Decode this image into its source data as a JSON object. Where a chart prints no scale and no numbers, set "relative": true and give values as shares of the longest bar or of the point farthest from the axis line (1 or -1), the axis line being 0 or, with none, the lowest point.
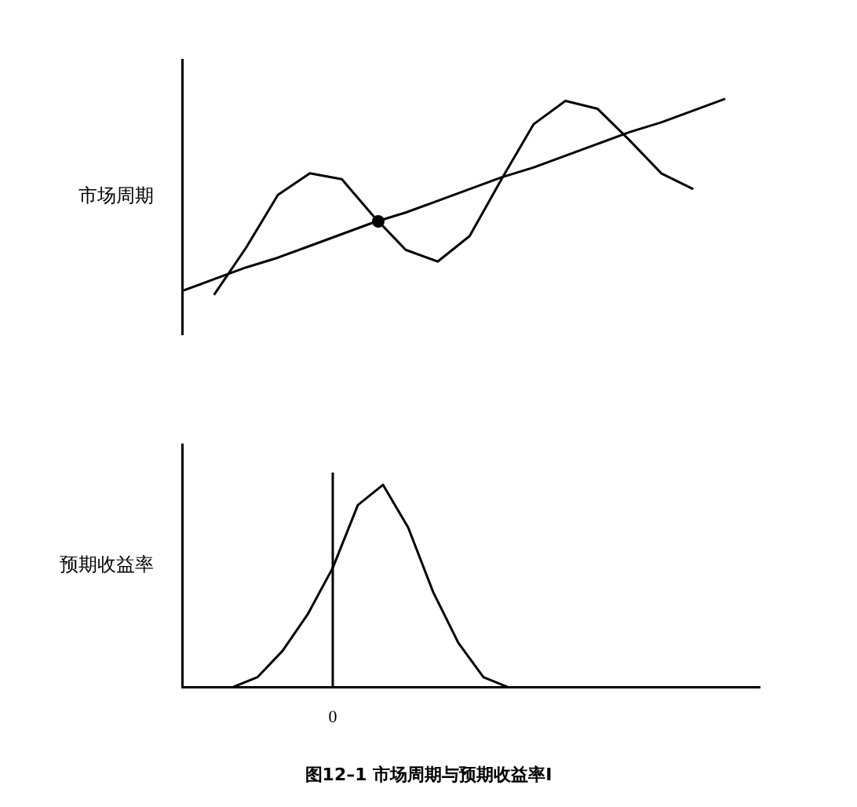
{
  "chart_data": [
    {
      "type": "line",
      "ylabel": "市场周期",
      "relative": true,
      "grid": false,
      "legend": false,
      "line_style": "solid",
      "categories": [
        null,
        null,
        null,
        null,
        null,
        null,
        null,
        null,
        null,
        null,
        null,
        null,
        null,
        null,
        null,
        null,
        null,
        null
      ],
      "series": [
        {
          "color": "#000000",
          "values": [
            null,
            0,
            0.24,
            0.51,
            0.62,
            0.59,
            0.4,
            0.23,
            0.17,
            0.3,
            0.59,
            0.87,
            0.99,
            0.95,
            0.79,
            0.62,
            0.54,
            null
          ]
        },
        {
          "color": "#000000",
          "values": [
            0.02,
            0.08,
            0.14,
            0.19,
            0.25,
            0.31,
            0.37,
            0.42,
            0.48,
            0.54,
            0.6,
            0.65,
            0.71,
            0.77,
            0.83,
            0.88,
            0.94,
            1.0
          ]
        }
      ]
    },
    {
      "type": "line",
      "ylabel": "预期收益率",
      "relative": true,
      "grid": false,
      "legend": false,
      "line_style": "solid",
      "tick_labels": "x",
      "categories": [
        null,
        null,
        null,
        null,
        null,
        null,
        null,
        null,
        null,
        null,
        null,
        null,
        null,
        null,
        null,
        null,
        null,
        null,
        null,
        null,
        null,
        null,
        null,
        null
      ],
      "series": [
        {
          "color": "#000000",
          "values": [
            null,
            null,
            0,
            0.05,
            0.18,
            0.36,
            0.59,
            0.9,
            1.0,
            0.79,
            0.47,
            0.22,
            0.05,
            0,
            null,
            null,
            null,
            null,
            null,
            null,
            null,
            null,
            null,
            null
          ]
        }
      ],
      "annotations": [
        "0",
        "图12–1 市场周期与预期收益率I"
      ]
    }
  ]
}
